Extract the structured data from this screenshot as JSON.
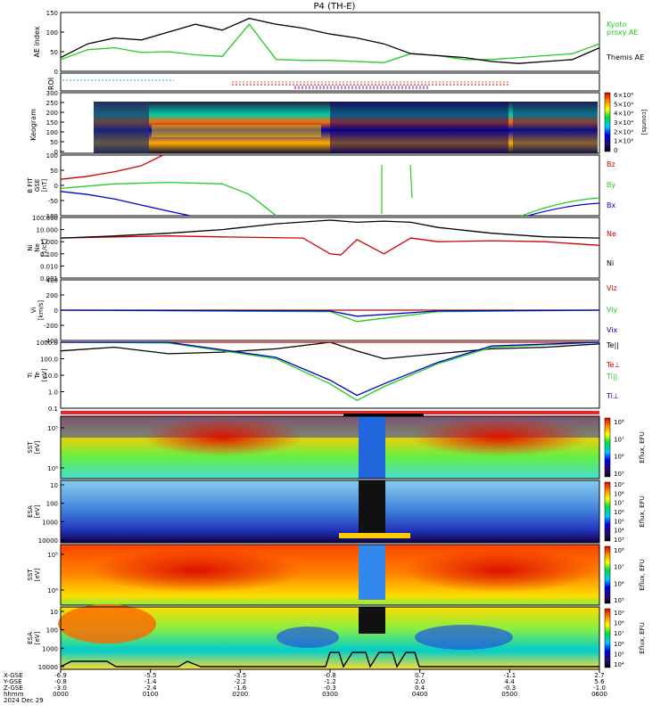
{
  "title": "P4 (TH-E)",
  "colors": {
    "kyoto": "#22cc22",
    "themis": "#000000",
    "bz": "#cc0000",
    "by": "#22cc22",
    "bx": "#0000cc",
    "ne": "#cc0000",
    "ni": "#000000"
  },
  "chart_data": [
    {
      "type": "line",
      "panel": "ae",
      "ylabel": "AE index",
      "ylim": [
        0,
        150
      ],
      "yticks": [
        "0",
        "50",
        "100",
        "150"
      ],
      "series": [
        {
          "name": "Kyoto proxy AE",
          "label_lines": [
            "Kyoto",
            "proxy AE"
          ],
          "color": "#22cc22",
          "x": [
            0,
            0.05,
            0.1,
            0.15,
            0.2,
            0.25,
            0.3,
            0.35,
            0.4,
            0.45,
            0.5,
            0.55,
            0.6,
            0.65,
            0.7,
            0.75,
            0.8,
            0.85,
            0.9,
            0.95,
            1.0
          ],
          "values": [
            30,
            55,
            60,
            48,
            50,
            42,
            38,
            120,
            30,
            28,
            28,
            25,
            22,
            45,
            40,
            30,
            30,
            35,
            40,
            45,
            70
          ]
        },
        {
          "name": "Themis AE",
          "label_lines": [
            "Themis AE"
          ],
          "color": "#000000",
          "x": [
            0,
            0.05,
            0.1,
            0.15,
            0.2,
            0.25,
            0.3,
            0.35,
            0.4,
            0.45,
            0.5,
            0.55,
            0.6,
            0.65,
            0.7,
            0.75,
            0.8,
            0.85,
            0.9,
            0.95,
            1.0
          ],
          "values": [
            35,
            70,
            85,
            80,
            100,
            120,
            105,
            135,
            120,
            110,
            95,
            85,
            70,
            45,
            40,
            35,
            25,
            20,
            25,
            30,
            60
          ]
        }
      ]
    },
    {
      "type": "line",
      "panel": "b",
      "ylabel_lines": [
        "B FIT",
        "GSE",
        "[nT]"
      ],
      "ylim": [
        -100,
        100
      ],
      "yticks": [
        "-100",
        "-50",
        "0",
        "50",
        "100"
      ],
      "series": [
        {
          "name": "Bz",
          "color": "#cc0000",
          "x": [
            0,
            0.05,
            0.1,
            0.15,
            0.19
          ],
          "values": [
            20,
            30,
            45,
            65,
            100
          ]
        },
        {
          "name": "By",
          "color": "#22cc22",
          "x": [
            0,
            0.1,
            0.2,
            0.3,
            0.35,
            0.4
          ],
          "values": [
            -10,
            5,
            10,
            5,
            -30,
            -100
          ]
        },
        {
          "name": "Bx",
          "color": "#0000cc",
          "x": [
            0,
            0.05,
            0.1,
            0.15,
            0.2,
            0.24
          ],
          "values": [
            -20,
            -30,
            -45,
            -65,
            -85,
            -100
          ]
        }
      ]
    },
    {
      "type": "line",
      "panel": "density",
      "ylabel_lines": [
        "Ni",
        "Ne",
        "[1/cc]"
      ],
      "yscale": "log",
      "yticks": [
        "0.001",
        "0.010",
        "0.100",
        "1.000",
        "10.000",
        "100.000"
      ],
      "series": [
        {
          "name": "Ne",
          "color": "#cc0000",
          "x": [
            0,
            0.1,
            0.2,
            0.3,
            0.45,
            0.5,
            0.52,
            0.55,
            0.6,
            0.65,
            0.7,
            0.8,
            0.9,
            1.0
          ],
          "values": [
            2.0,
            2.5,
            3.0,
            2.5,
            2.0,
            0.1,
            0.08,
            1.5,
            0.1,
            2.0,
            1.0,
            1.2,
            1.0,
            0.5
          ]
        },
        {
          "name": "Ni",
          "color": "#000000",
          "x": [
            0,
            0.1,
            0.2,
            0.3,
            0.4,
            0.5,
            0.55,
            0.6,
            0.65,
            0.7,
            0.8,
            0.9,
            1.0
          ],
          "values": [
            2.0,
            3.0,
            5.0,
            10.0,
            30.0,
            60.0,
            40.0,
            50.0,
            40.0,
            15.0,
            5.0,
            2.5,
            2.0
          ]
        }
      ]
    },
    {
      "type": "line",
      "panel": "velocity",
      "ylabel_lines": [
        "Vi",
        "[km/s]"
      ],
      "ylim": [
        -400,
        400
      ],
      "yticks": [
        "-400",
        "-200",
        "0",
        "200",
        "400"
      ],
      "series": [
        {
          "name": "Viz",
          "color": "#cc0000",
          "x": [
            0,
            1
          ],
          "values": [
            0,
            0
          ]
        },
        {
          "name": "Viy",
          "color": "#22cc22",
          "x": [
            0,
            0.5,
            0.55,
            0.7,
            1
          ],
          "values": [
            0,
            -20,
            -150,
            -20,
            0
          ]
        },
        {
          "name": "Vix",
          "color": "#0000cc",
          "x": [
            0,
            0.5,
            0.55,
            0.7,
            1
          ],
          "values": [
            0,
            -10,
            -80,
            -10,
            0
          ]
        }
      ]
    },
    {
      "type": "line",
      "panel": "temperature",
      "ylabel_lines": [
        "Ti",
        "Te",
        "[eV]"
      ],
      "yscale": "log",
      "yticks": [
        "0.1",
        "1.0",
        "10.0",
        "100.0",
        "1000.0"
      ],
      "series": [
        {
          "name": "Te||",
          "color": "#000000",
          "x": [
            0,
            0.1,
            0.2,
            0.3,
            0.4,
            0.5,
            0.55,
            0.6,
            0.7,
            0.8,
            0.9,
            1.0
          ],
          "values": [
            300,
            500,
            200,
            250,
            400,
            1000,
            300,
            100,
            200,
            400,
            500,
            800
          ]
        },
        {
          "name": "Te⊥",
          "color": "#cc0000",
          "x": [
            0,
            1
          ],
          "values": [
            1500,
            1500
          ]
        },
        {
          "name": "Ti||",
          "color": "#22cc22",
          "x": [
            0,
            0.2,
            0.4,
            0.5,
            0.55,
            0.6,
            0.7,
            0.8,
            1.0
          ],
          "values": [
            1200,
            900,
            100,
            3,
            0.3,
            2,
            50,
            500,
            1200
          ]
        },
        {
          "name": "Ti⊥",
          "color": "#0000cc",
          "x": [
            0,
            0.2,
            0.4,
            0.5,
            0.55,
            0.6,
            0.7,
            0.8,
            1.0
          ],
          "values": [
            1300,
            1000,
            120,
            5,
            0.6,
            3,
            60,
            600,
            1300
          ]
        }
      ]
    }
  ],
  "panels": {
    "roi_label": "ROI",
    "keogram": {
      "label": "Keogram",
      "yticks": [
        "0",
        "50",
        "100",
        "150",
        "200",
        "250",
        "300"
      ],
      "colorbar_ticks": [
        "6×10⁴",
        "5×10⁴",
        "4×10⁴",
        "3×10⁴",
        "2×10⁴",
        "1×10⁴",
        "0"
      ],
      "colorbar_unit": "[counts]"
    },
    "sst_e": {
      "lines": [
        "SST",
        "[eV]"
      ],
      "yticks": [
        "10⁶",
        "10⁵"
      ],
      "colorbar_ticks": [
        "10⁸",
        "10⁷",
        "10⁶",
        "10⁵"
      ],
      "colorbar_unit": "Eflux, EFU"
    },
    "esa_e": {
      "lines": [
        "ESA",
        "[eV]"
      ],
      "yticks": [
        "10000",
        "1000",
        "100",
        "10"
      ],
      "colorbar_ticks": [
        "10⁹",
        "10⁸",
        "10⁷",
        "10⁶",
        "10⁵",
        "10⁴",
        "10³"
      ],
      "colorbar_unit": "Eflux, EFU"
    },
    "sst_i": {
      "lines": [
        "SST",
        "[eV]"
      ],
      "yticks": [
        "10⁶",
        "10⁵"
      ],
      "colorbar_ticks": [
        "10⁸",
        "10⁷",
        "10⁶",
        "10⁵"
      ],
      "colorbar_unit": "Eflux, EFU"
    },
    "esa_i": {
      "lines": [
        "ESA",
        "[eV]"
      ],
      "yticks": [
        "10000",
        "1000",
        "100",
        "10"
      ],
      "colorbar_ticks": [
        "10⁹",
        "10⁸",
        "10⁷",
        "10⁶",
        "10⁵",
        "10⁴"
      ],
      "colorbar_unit": "Eflux, EFU"
    }
  },
  "xaxis": {
    "row_labels": [
      "X-GSE",
      "Y-GSE",
      "Z-GSE",
      "hhmm",
      "2024 Dec 29"
    ],
    "columns": [
      {
        "x": "-6.9",
        "y": "-0.8",
        "z": "-3.0",
        "t": "0000"
      },
      {
        "x": "-5.5",
        "y": "-1.4",
        "z": "-2.4",
        "t": "0100"
      },
      {
        "x": "-3.5",
        "y": "-2.2",
        "z": "-1.6",
        "t": "0200"
      },
      {
        "x": "-0.8",
        "y": "-1.2",
        "z": "-0.3",
        "t": "0300"
      },
      {
        "x": "0.7",
        "y": "2.0",
        "z": "0.4",
        "t": "0400"
      },
      {
        "x": "-1.1",
        "y": "4.4",
        "z": "-0.3",
        "t": "0500"
      },
      {
        "x": "2.7",
        "y": "5.6",
        "z": "-1.0",
        "t": "0600"
      }
    ]
  }
}
